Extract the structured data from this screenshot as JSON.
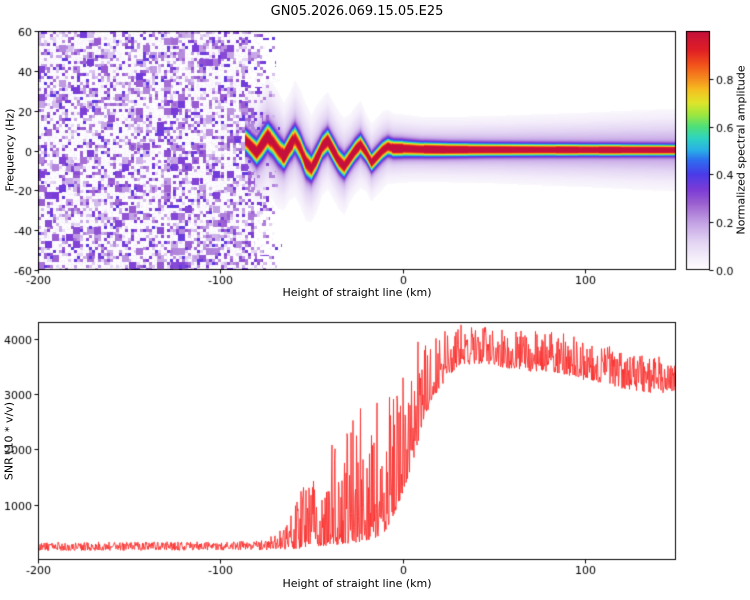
{
  "chart_data": [
    {
      "type": "heatmap",
      "title": "GN05.2026.069.15.05.E25",
      "xlabel": "Height of straight line (km)",
      "ylabel": "Frequency (Hz)",
      "xlim": [
        -200,
        150
      ],
      "ylim": [
        -60,
        60
      ],
      "x_ticks": [
        {
          "v": -200,
          "t": "-200"
        },
        {
          "v": -100,
          "t": "-100"
        },
        {
          "v": 0,
          "t": "0"
        },
        {
          "v": 100,
          "t": "100"
        }
      ],
      "y_ticks": [
        {
          "v": 60,
          "t": "60"
        },
        {
          "v": 40,
          "t": "40"
        },
        {
          "v": 20,
          "t": "20"
        },
        {
          "v": 0,
          "t": "0"
        },
        {
          "v": -20,
          "t": "-20"
        },
        {
          "v": -40,
          "t": "-40"
        },
        {
          "v": -60,
          "t": "-60"
        }
      ],
      "colorbar": {
        "label": "Normalized spectral amplitude",
        "range": [
          0,
          1
        ],
        "ticks": [
          {
            "v": 0.0,
            "t": "0.0"
          },
          {
            "v": 0.2,
            "t": "0.2"
          },
          {
            "v": 0.4,
            "t": "0.4"
          },
          {
            "v": 0.6,
            "t": "0.6"
          },
          {
            "v": 0.8,
            "t": "0.8"
          }
        ]
      },
      "colormap": [
        [
          0.0,
          "#ffffff"
        ],
        [
          0.06,
          "#f3ecfa"
        ],
        [
          0.12,
          "#e2d3f3"
        ],
        [
          0.2,
          "#c3a1e4"
        ],
        [
          0.28,
          "#9b5fd0"
        ],
        [
          0.34,
          "#7a3bd8"
        ],
        [
          0.4,
          "#4b3be8"
        ],
        [
          0.46,
          "#2e6ff0"
        ],
        [
          0.5,
          "#29aee8"
        ],
        [
          0.55,
          "#2fd4c3"
        ],
        [
          0.6,
          "#4fe07a"
        ],
        [
          0.65,
          "#9fe83f"
        ],
        [
          0.7,
          "#dfe52b"
        ],
        [
          0.75,
          "#f5c322"
        ],
        [
          0.8,
          "#f68c1f"
        ],
        [
          0.86,
          "#f2511b"
        ],
        [
          0.92,
          "#e01f25"
        ],
        [
          1.0,
          "#c4103c"
        ]
      ],
      "noise_field": {
        "x_range": [
          -200,
          -66
        ],
        "amplitude_range": [
          0.03,
          0.38
        ]
      },
      "signal_track": {
        "x": [
          -86,
          -83,
          -80,
          -77,
          -74,
          -71,
          -68,
          -65,
          -62,
          -59,
          -56,
          -53,
          -50,
          -47,
          -44,
          -41,
          -38,
          -35,
          -32,
          -29,
          -26,
          -23,
          -20,
          -17,
          -14,
          -11,
          -8,
          -5,
          0,
          10,
          25,
          50,
          100,
          150
        ],
        "center_hz": [
          5,
          2,
          -1,
          3,
          7,
          4,
          0,
          -3,
          2,
          6,
          1,
          -6,
          -9,
          -4,
          2,
          5,
          0,
          -5,
          -8,
          -4,
          0,
          3,
          -1,
          -6,
          -3,
          0,
          2,
          1,
          1,
          0.6,
          0.4,
          0.4,
          0.3,
          0.2
        ],
        "width_hz": [
          5,
          5,
          5.5,
          6,
          6,
          6,
          6,
          5.5,
          5.5,
          6,
          6,
          6,
          5.5,
          5.5,
          5,
          5,
          5,
          5,
          5,
          4.5,
          4.5,
          4.5,
          4,
          4,
          4,
          4,
          3.8,
          3.6,
          3.5,
          3.2,
          3,
          2.8,
          2.6,
          2.5
        ],
        "core_amplitude": 0.95
      }
    },
    {
      "type": "line",
      "xlabel": "Height of straight line (km)",
      "ylabel": "SNR (10 * v/v)",
      "color": "#f8312f",
      "xlim": [
        -200,
        150
      ],
      "ylim": [
        0,
        4300
      ],
      "x_ticks": [
        {
          "v": -200,
          "t": "-200"
        },
        {
          "v": -100,
          "t": "-100"
        },
        {
          "v": 0,
          "t": "0"
        },
        {
          "v": 100,
          "t": "100"
        }
      ],
      "y_ticks": [
        {
          "v": 1000,
          "t": "1000"
        },
        {
          "v": 2000,
          "t": "2000"
        },
        {
          "v": 3000,
          "t": "3000"
        },
        {
          "v": 4000,
          "t": "4000"
        }
      ],
      "series": [
        {
          "name": "SNR",
          "x": [
            -200,
            -150,
            -100,
            -85,
            -75,
            -70,
            -65,
            -60,
            -55,
            -50,
            -45,
            -40,
            -35,
            -30,
            -25,
            -20,
            -15,
            -10,
            -5,
            0,
            5,
            10,
            15,
            20,
            25,
            30,
            40,
            50,
            60,
            70,
            80,
            90,
            100,
            110,
            120,
            130,
            140,
            148
          ],
          "lower": [
            170,
            170,
            175,
            180,
            180,
            185,
            190,
            200,
            210,
            230,
            250,
            260,
            280,
            300,
            320,
            350,
            400,
            500,
            800,
            1200,
            1700,
            2300,
            2800,
            3100,
            3300,
            3500,
            3550,
            3500,
            3450,
            3400,
            3400,
            3350,
            3250,
            3200,
            3100,
            3050,
            3000,
            3050
          ],
          "upper": [
            330,
            330,
            335,
            340,
            360,
            500,
            700,
            900,
            1300,
            1600,
            1900,
            2100,
            2300,
            2500,
            2800,
            3000,
            3300,
            3500,
            3700,
            3900,
            4000,
            4050,
            4100,
            4150,
            4200,
            4250,
            4250,
            4200,
            4150,
            4150,
            4150,
            4100,
            4000,
            3900,
            3800,
            3750,
            3700,
            3650
          ]
        }
      ]
    }
  ]
}
